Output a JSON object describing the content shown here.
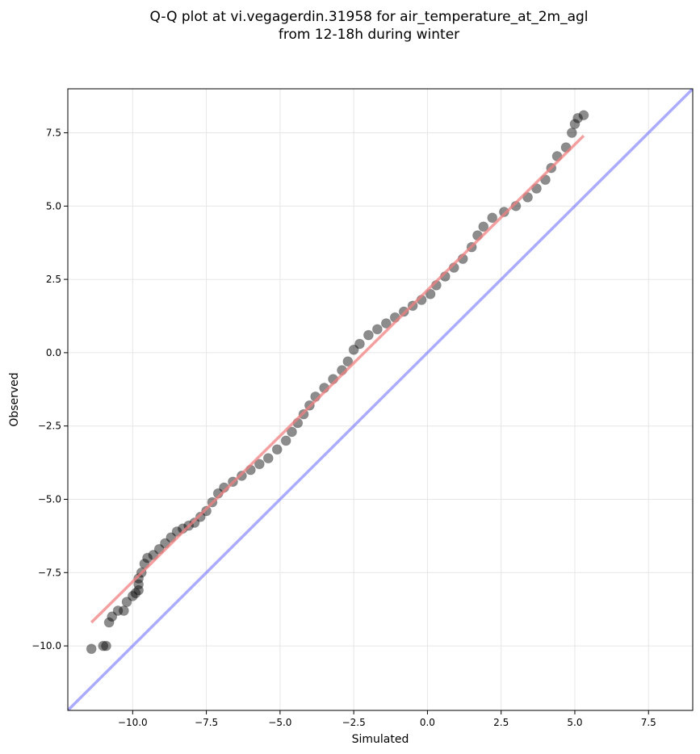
{
  "chart_data": {
    "type": "scatter",
    "title_lines": [
      "Q-Q plot at vi.vegagerdin.31958 for air_temperature_at_2m_agl",
      "from 12-18h during winter"
    ],
    "xlabel": "Simulated",
    "ylabel": "Observed",
    "xlim": [
      -12.2,
      9.0
    ],
    "ylim": [
      -12.2,
      9.0
    ],
    "x_ticks": [
      -10.0,
      -7.5,
      -5.0,
      -2.5,
      0.0,
      2.5,
      5.0,
      7.5
    ],
    "y_ticks": [
      -10.0,
      -7.5,
      -5.0,
      -2.5,
      0.0,
      2.5,
      5.0,
      7.5
    ],
    "x_tick_labels": [
      "−10.0",
      "−7.5",
      "−5.0",
      "−2.5",
      "0.0",
      "2.5",
      "5.0",
      "7.5"
    ],
    "y_tick_labels": [
      "−10.0",
      "−7.5",
      "−5.0",
      "−2.5",
      "0.0",
      "2.5",
      "5.0",
      "7.5"
    ],
    "grid": true,
    "series": [
      {
        "kind": "quantile-points",
        "color": "#000000",
        "points": [
          [
            -11.4,
            -10.1
          ],
          [
            -11.0,
            -10.0
          ],
          [
            -10.9,
            -10.0
          ],
          [
            -10.8,
            -9.2
          ],
          [
            -10.7,
            -9.0
          ],
          [
            -10.5,
            -8.8
          ],
          [
            -10.3,
            -8.8
          ],
          [
            -10.2,
            -8.5
          ],
          [
            -10.0,
            -8.3
          ],
          [
            -9.9,
            -8.2
          ],
          [
            -9.8,
            -8.1
          ],
          [
            -9.8,
            -7.9
          ],
          [
            -9.8,
            -7.7
          ],
          [
            -9.7,
            -7.5
          ],
          [
            -9.6,
            -7.2
          ],
          [
            -9.5,
            -7.0
          ],
          [
            -9.3,
            -6.9
          ],
          [
            -9.1,
            -6.7
          ],
          [
            -8.9,
            -6.5
          ],
          [
            -8.7,
            -6.3
          ],
          [
            -8.5,
            -6.1
          ],
          [
            -8.3,
            -6.0
          ],
          [
            -8.1,
            -5.9
          ],
          [
            -7.9,
            -5.8
          ],
          [
            -7.7,
            -5.6
          ],
          [
            -7.5,
            -5.4
          ],
          [
            -7.3,
            -5.1
          ],
          [
            -7.1,
            -4.8
          ],
          [
            -6.9,
            -4.6
          ],
          [
            -6.6,
            -4.4
          ],
          [
            -6.3,
            -4.2
          ],
          [
            -6.0,
            -4.0
          ],
          [
            -5.7,
            -3.8
          ],
          [
            -5.4,
            -3.6
          ],
          [
            -5.1,
            -3.3
          ],
          [
            -4.8,
            -3.0
          ],
          [
            -4.6,
            -2.7
          ],
          [
            -4.4,
            -2.4
          ],
          [
            -4.2,
            -2.1
          ],
          [
            -4.0,
            -1.8
          ],
          [
            -3.8,
            -1.5
          ],
          [
            -3.5,
            -1.2
          ],
          [
            -3.2,
            -0.9
          ],
          [
            -2.9,
            -0.6
          ],
          [
            -2.7,
            -0.3
          ],
          [
            -2.5,
            0.1
          ],
          [
            -2.3,
            0.3
          ],
          [
            -2.0,
            0.6
          ],
          [
            -1.7,
            0.8
          ],
          [
            -1.4,
            1.0
          ],
          [
            -1.1,
            1.2
          ],
          [
            -0.8,
            1.4
          ],
          [
            -0.5,
            1.6
          ],
          [
            -0.2,
            1.8
          ],
          [
            0.1,
            2.0
          ],
          [
            0.3,
            2.3
          ],
          [
            0.6,
            2.6
          ],
          [
            0.9,
            2.9
          ],
          [
            1.2,
            3.2
          ],
          [
            1.5,
            3.6
          ],
          [
            1.7,
            4.0
          ],
          [
            1.9,
            4.3
          ],
          [
            2.2,
            4.6
          ],
          [
            2.6,
            4.8
          ],
          [
            3.0,
            5.0
          ],
          [
            3.4,
            5.3
          ],
          [
            3.7,
            5.6
          ],
          [
            4.0,
            5.9
          ],
          [
            4.2,
            6.3
          ],
          [
            4.4,
            6.7
          ],
          [
            4.7,
            7.0
          ],
          [
            4.9,
            7.5
          ],
          [
            5.0,
            7.8
          ],
          [
            5.1,
            8.0
          ],
          [
            5.3,
            8.1
          ]
        ]
      },
      {
        "kind": "fit-line",
        "color": "#f08080",
        "points": [
          [
            -11.4,
            -9.2
          ],
          [
            5.3,
            7.4
          ]
        ]
      },
      {
        "kind": "reference-line",
        "color": "#6666ff",
        "points": [
          [
            -12.2,
            -12.2
          ],
          [
            9.0,
            9.0
          ]
        ]
      }
    ]
  }
}
